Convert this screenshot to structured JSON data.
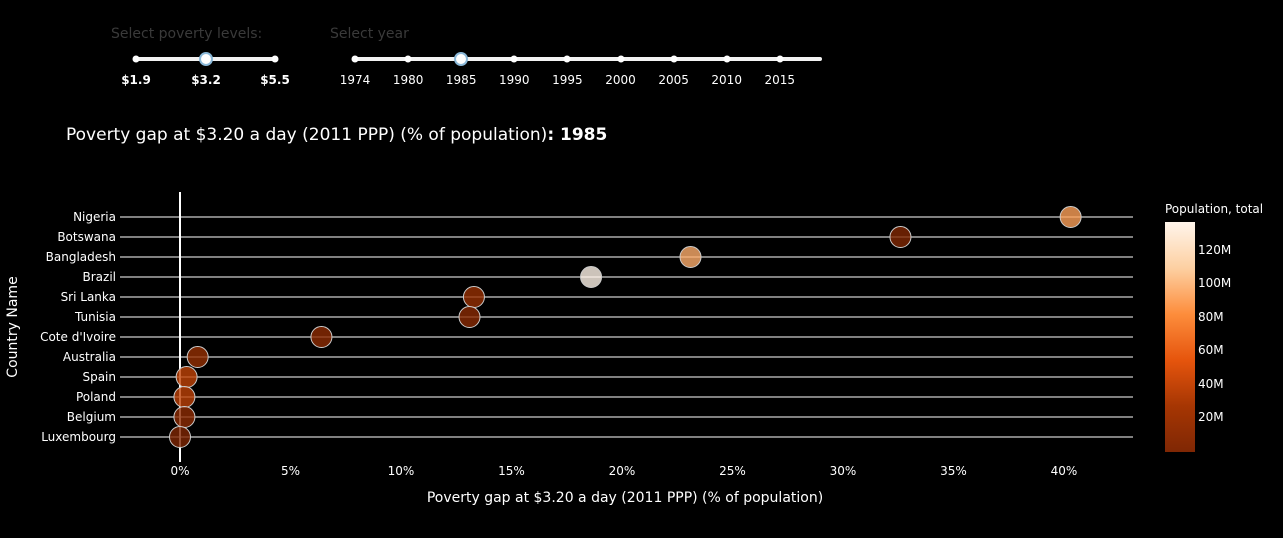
{
  "controls": {
    "poverty_slider": {
      "label": "Select poverty levels:",
      "options": [
        "$1.9",
        "$3.2",
        "$5.5"
      ],
      "selected": "$3.2"
    },
    "year_slider": {
      "label": "Select year",
      "options": [
        "1974",
        "1980",
        "1985",
        "1990",
        "1995",
        "2000",
        "2005",
        "2010",
        "2015"
      ],
      "selected": "1985"
    }
  },
  "chart_data": {
    "type": "scatter",
    "title": "Poverty gap at $3.20 a day (2011 PPP) (% of population)",
    "title_suffix": ": 1985",
    "xlabel": "Poverty gap at $3.20 a day (2011 PPP) (% of population)",
    "ylabel": "Country Name",
    "xlim": [
      -0.8,
      43.5
    ],
    "x_ticks": [
      "0%",
      "5%",
      "10%",
      "15%",
      "20%",
      "25%",
      "30%",
      "35%",
      "40%"
    ],
    "x_tick_values": [
      0,
      5,
      10,
      15,
      20,
      25,
      30,
      35,
      40
    ],
    "points": [
      {
        "country": "Nigeria",
        "x": 40.3,
        "population": 90
      },
      {
        "country": "Botswana",
        "x": 32.6,
        "population": 1.2
      },
      {
        "country": "Bangladesh",
        "x": 23.1,
        "population": 95
      },
      {
        "country": "Brazil",
        "x": 18.6,
        "population": 136
      },
      {
        "country": "Sri Lanka",
        "x": 13.3,
        "population": 16
      },
      {
        "country": "Tunisia",
        "x": 13.1,
        "population": 7.5
      },
      {
        "country": "Cote d'Ivoire",
        "x": 6.4,
        "population": 10
      },
      {
        "country": "Australia",
        "x": 0.8,
        "population": 15.8
      },
      {
        "country": "Spain",
        "x": 0.3,
        "population": 38.5
      },
      {
        "country": "Poland",
        "x": 0.2,
        "population": 37.2
      },
      {
        "country": "Belgium",
        "x": 0.2,
        "population": 9.9
      },
      {
        "country": "Luxembourg",
        "x": 0.0,
        "population": 0.4
      }
    ],
    "colorbar": {
      "title": "Population, total",
      "ticks": [
        "120M",
        "100M",
        "80M",
        "60M",
        "40M",
        "20M"
      ],
      "tick_values": [
        120,
        100,
        80,
        60,
        40,
        20
      ],
      "range": [
        0,
        137
      ]
    },
    "grid": true
  }
}
